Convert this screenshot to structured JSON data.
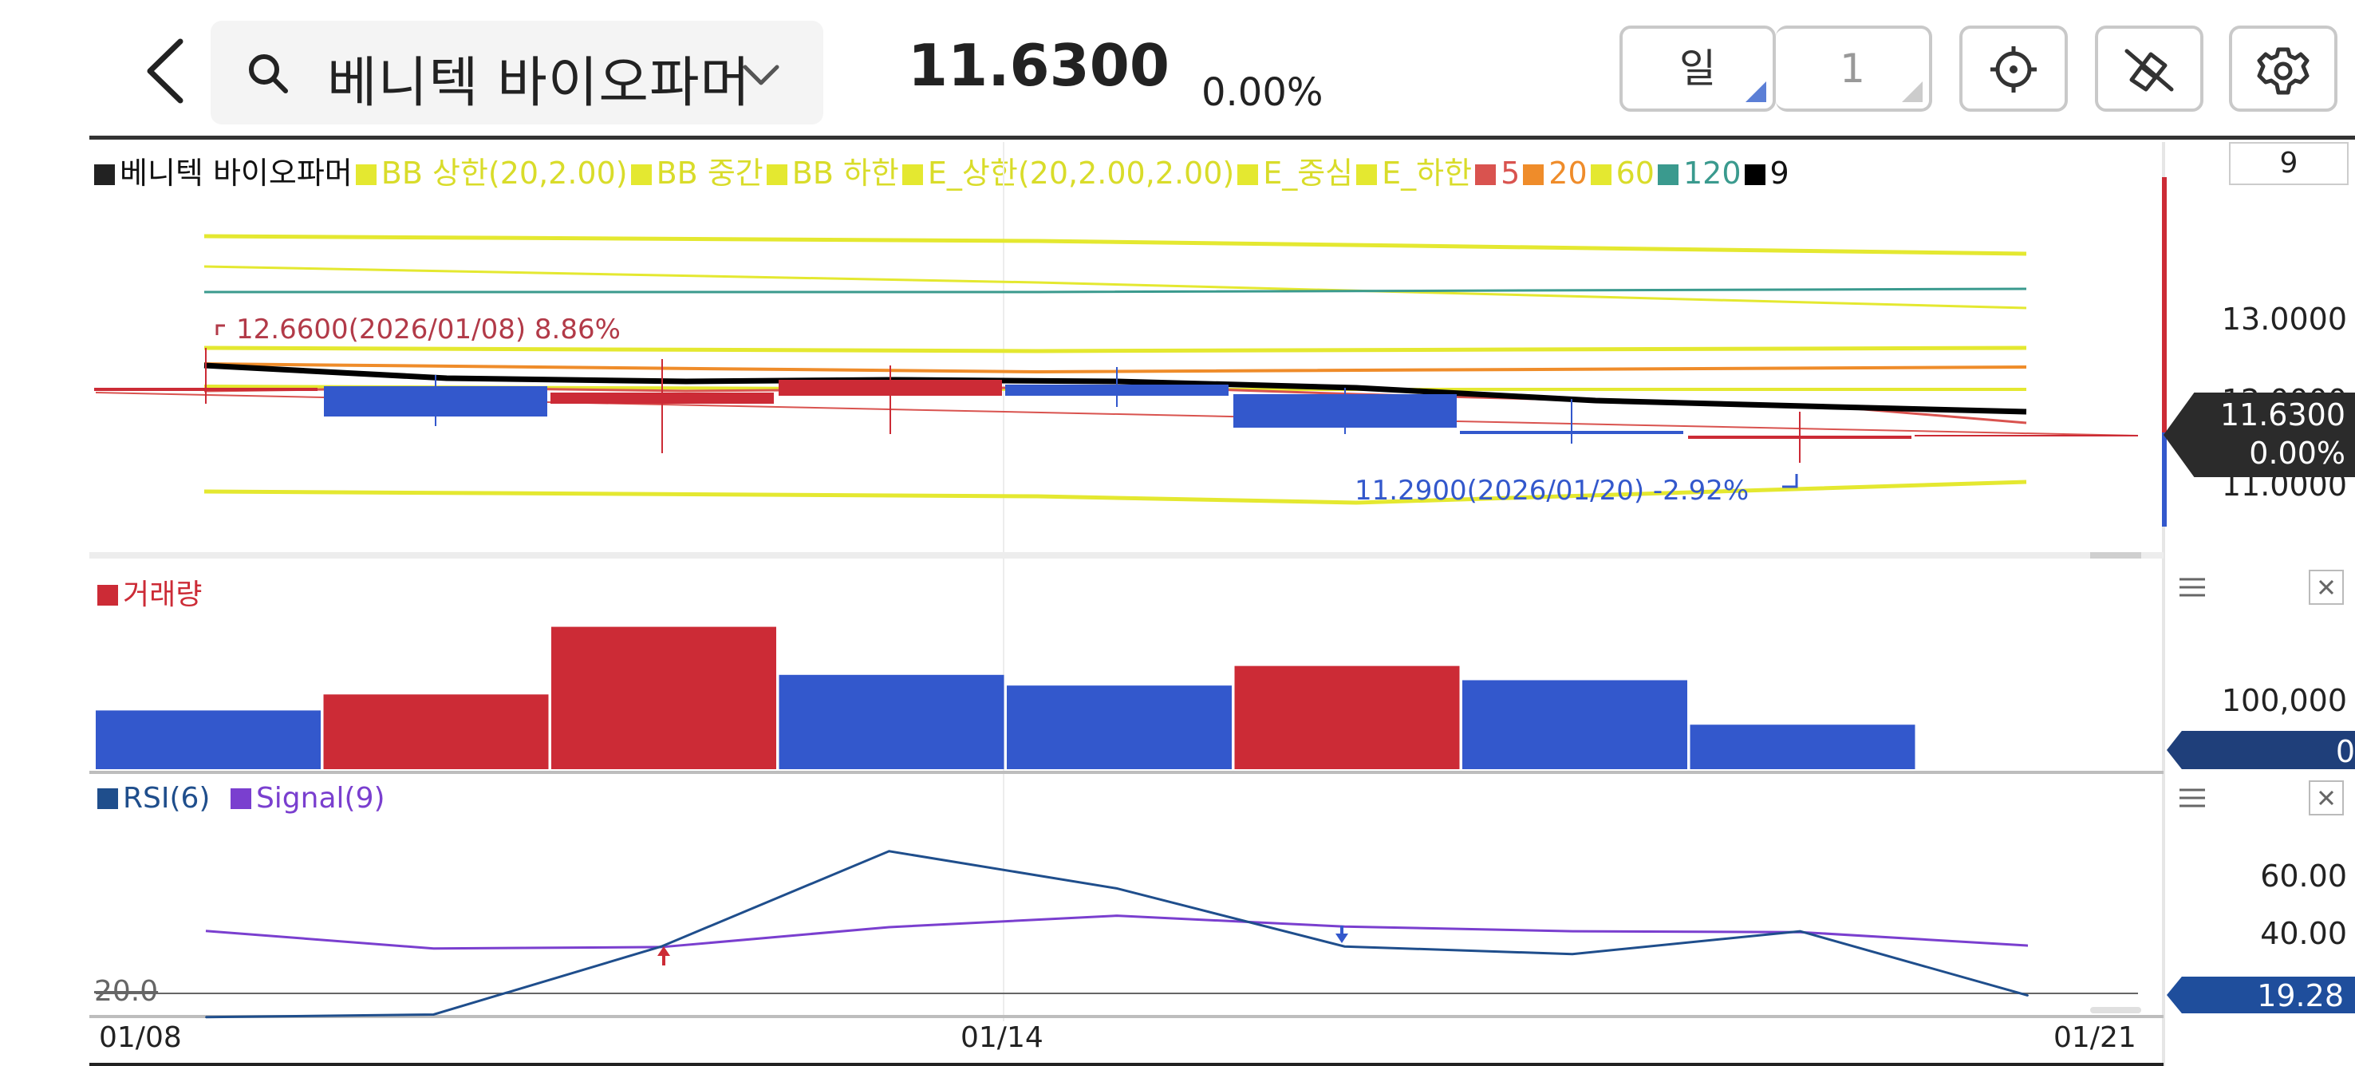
{
  "header": {
    "stock_name": "베니텍 바이오파머",
    "price": "11.6300",
    "change_rate": "0.00%",
    "period_label": "일",
    "period_value": "1"
  },
  "legend": [
    {
      "label": "베니텍 바이오파머",
      "color": "#222222"
    },
    {
      "label": "BB 상한(20,2.00)",
      "color": "#e4e830"
    },
    {
      "label": "BB 중간",
      "color": "#e4e830"
    },
    {
      "label": "BB 하한",
      "color": "#e4e830"
    },
    {
      "label": "E_상한(20,2.00,2.00)",
      "color": "#e4e830"
    },
    {
      "label": "E_중심",
      "color": "#e4e830"
    },
    {
      "label": "E_하한",
      "color": "#e4e830"
    },
    {
      "label": "5",
      "color": "#d9534f"
    },
    {
      "label": "20",
      "color": "#ef8c2a"
    },
    {
      "label": "60",
      "color": "#e4e830"
    },
    {
      "label": "120",
      "color": "#3a9a8e"
    },
    {
      "label": "9",
      "color": "#000000"
    }
  ],
  "price_panel": {
    "right_box": "9",
    "axis": [
      "13.0000",
      "12.0000",
      "11.0000"
    ],
    "current_price": "11.6300",
    "current_rate": "0.00%",
    "high_annotation": "12.6600(2026/01/08) 8.86%",
    "low_annotation": "11.2900(2026/01/20) -2.92%"
  },
  "volume_panel": {
    "title": "거래량",
    "axis_label": "100,000",
    "badge": "0",
    "bars": [
      {
        "value": 66000,
        "color": "#3358cc"
      },
      {
        "value": 84000,
        "color": "#cc2b36"
      },
      {
        "value": 160000,
        "color": "#cc2b36"
      },
      {
        "value": 106000,
        "color": "#3358cc"
      },
      {
        "value": 94000,
        "color": "#3358cc"
      },
      {
        "value": 116000,
        "color": "#cc2b36"
      },
      {
        "value": 100000,
        "color": "#3358cc"
      },
      {
        "value": 50000,
        "color": "#3358cc"
      }
    ]
  },
  "rsi_panel": {
    "title_rsi": "RSI(6)",
    "title_signal": "Signal(9)",
    "axis": [
      "60.00",
      "40.00"
    ],
    "reference_line": "20.0",
    "badge": "19.28",
    "rsi_values": [
      11.9,
      12.8,
      36.0,
      68.5,
      55.8,
      36.0,
      33.4,
      41.2,
      19.28
    ],
    "signal_values": [
      41.3,
      35.3,
      35.8,
      42.6,
      46.5,
      42.8,
      41.2,
      40.9,
      36.3
    ]
  },
  "dates": [
    "01/08",
    "01/14",
    "01/21"
  ],
  "colors": {
    "up": "#cc2b36",
    "down": "#3358cc",
    "bollinger": "#e4e830",
    "ma5": "#d9534f",
    "ma20": "#ef8c2a",
    "ma120": "#3a9a8e",
    "ma9": "#000000",
    "rsi": "#1f4e8c",
    "signal": "#7a3fcf"
  },
  "icons": [
    "back-icon",
    "search-icon",
    "chevron-down-icon",
    "crosshair-icon",
    "draw-off-icon",
    "gear-icon",
    "menu-icon",
    "close-icon"
  ]
}
